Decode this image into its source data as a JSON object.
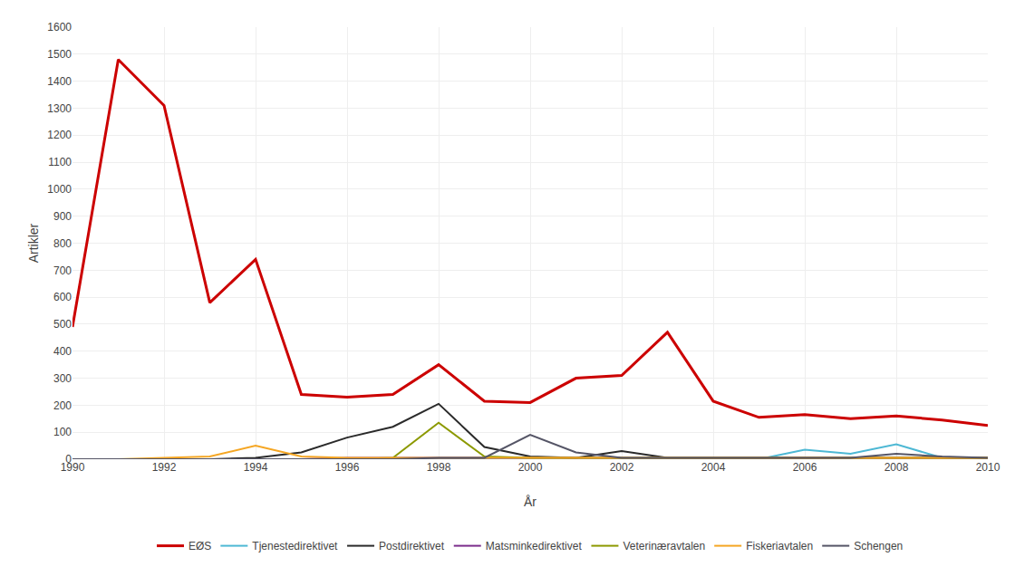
{
  "chart_data": {
    "type": "line",
    "x": [
      1990,
      1991,
      1992,
      1993,
      1994,
      1995,
      1996,
      1997,
      1998,
      1999,
      2000,
      2001,
      2002,
      2003,
      2004,
      2005,
      2006,
      2007,
      2008,
      2009,
      2010
    ],
    "series": [
      {
        "name": "EØS",
        "color": "#cc0000",
        "values": [
          490,
          1480,
          1310,
          580,
          740,
          240,
          230,
          240,
          350,
          215,
          210,
          300,
          310,
          470,
          215,
          155,
          165,
          150,
          160,
          145,
          125
        ]
      },
      {
        "name": "Tjenestedirektivet",
        "color": "#4db8d4",
        "values": [
          0,
          0,
          0,
          0,
          0,
          0,
          0,
          0,
          0,
          0,
          0,
          0,
          0,
          0,
          0,
          0,
          35,
          20,
          55,
          5,
          5
        ]
      },
      {
        "name": "Postdirektivet",
        "color": "#2a2a2a",
        "values": [
          0,
          0,
          0,
          0,
          5,
          25,
          80,
          120,
          205,
          45,
          10,
          5,
          30,
          5,
          5,
          5,
          5,
          5,
          5,
          5,
          5
        ]
      },
      {
        "name": "Matsminkedirektivet",
        "color": "#7b2d8b",
        "values": [
          0,
          0,
          0,
          0,
          0,
          0,
          5,
          5,
          5,
          5,
          5,
          5,
          5,
          5,
          5,
          5,
          5,
          5,
          5,
          5,
          5
        ]
      },
      {
        "name": "Veterinæravtalen",
        "color": "#8c9900",
        "values": [
          0,
          0,
          0,
          0,
          0,
          0,
          0,
          5,
          135,
          10,
          5,
          5,
          5,
          5,
          5,
          5,
          5,
          5,
          5,
          5,
          5
        ]
      },
      {
        "name": "Fiskeriavtalen",
        "color": "#f5a623",
        "values": [
          0,
          0,
          5,
          10,
          50,
          10,
          5,
          5,
          5,
          5,
          5,
          5,
          5,
          5,
          5,
          5,
          5,
          5,
          5,
          5,
          5
        ]
      },
      {
        "name": "Schengen",
        "color": "#555566",
        "values": [
          0,
          0,
          0,
          0,
          0,
          0,
          0,
          0,
          5,
          5,
          90,
          25,
          5,
          5,
          5,
          5,
          5,
          5,
          20,
          10,
          5
        ]
      }
    ],
    "xlim": [
      1990,
      2010
    ],
    "ylim": [
      0,
      1600
    ],
    "xticks": [
      1990,
      1992,
      1994,
      1996,
      1998,
      2000,
      2002,
      2004,
      2006,
      2008,
      2010
    ],
    "yticks": [
      0,
      100,
      200,
      300,
      400,
      500,
      600,
      700,
      800,
      900,
      1000,
      1100,
      1200,
      1300,
      1400,
      1500,
      1600
    ],
    "xlabel": "År",
    "ylabel": "Artikler",
    "grid": true,
    "legend": "bottom"
  }
}
